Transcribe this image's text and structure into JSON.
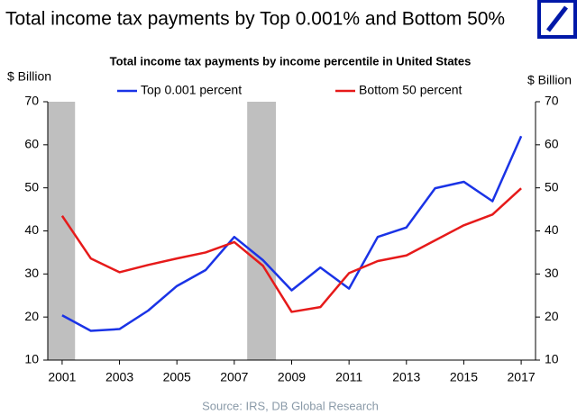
{
  "header": {
    "title": "Total income tax payments by Top 0.001% and Bottom 50%"
  },
  "chart_data": {
    "type": "line",
    "title": "Total income tax payments by income percentile in United States",
    "y_label": "$ Billion",
    "y2_label": "$ Billion",
    "x": [
      2001,
      2002,
      2003,
      2004,
      2005,
      2006,
      2007,
      2008,
      2009,
      2010,
      2011,
      2012,
      2013,
      2014,
      2015,
      2016,
      2017
    ],
    "xlim": [
      2000.5,
      2017.5
    ],
    "xticks": [
      2001,
      2003,
      2005,
      2007,
      2009,
      2011,
      2013,
      2015,
      2017
    ],
    "ylim": [
      10,
      70
    ],
    "yticks": [
      10,
      20,
      30,
      40,
      50,
      60,
      70
    ],
    "y2lim": [
      10,
      70
    ],
    "y2ticks": [
      10,
      20,
      30,
      40,
      50,
      60,
      70
    ],
    "shaded_ranges": [
      [
        2000.5,
        2001.45
      ],
      [
        2007.45,
        2008.45
      ]
    ],
    "shade_color": "#bfbfbf",
    "series": [
      {
        "name": "Top 0.001 percent",
        "color": "#1a33e6",
        "values": [
          20.4,
          16.8,
          17.2,
          21.5,
          27.2,
          30.9,
          38.6,
          33.2,
          26.2,
          31.5,
          26.6,
          38.6,
          40.8,
          49.9,
          51.4,
          46.9,
          62.0
        ]
      },
      {
        "name": "Bottom 50 percent",
        "color": "#e61a1a",
        "values": [
          43.5,
          33.6,
          30.4,
          32.1,
          33.6,
          35.0,
          37.4,
          31.9,
          21.2,
          22.3,
          30.2,
          33.0,
          34.3,
          37.8,
          41.3,
          43.8,
          49.9
        ]
      }
    ],
    "source": "Source: IRS, DB Global Research"
  }
}
